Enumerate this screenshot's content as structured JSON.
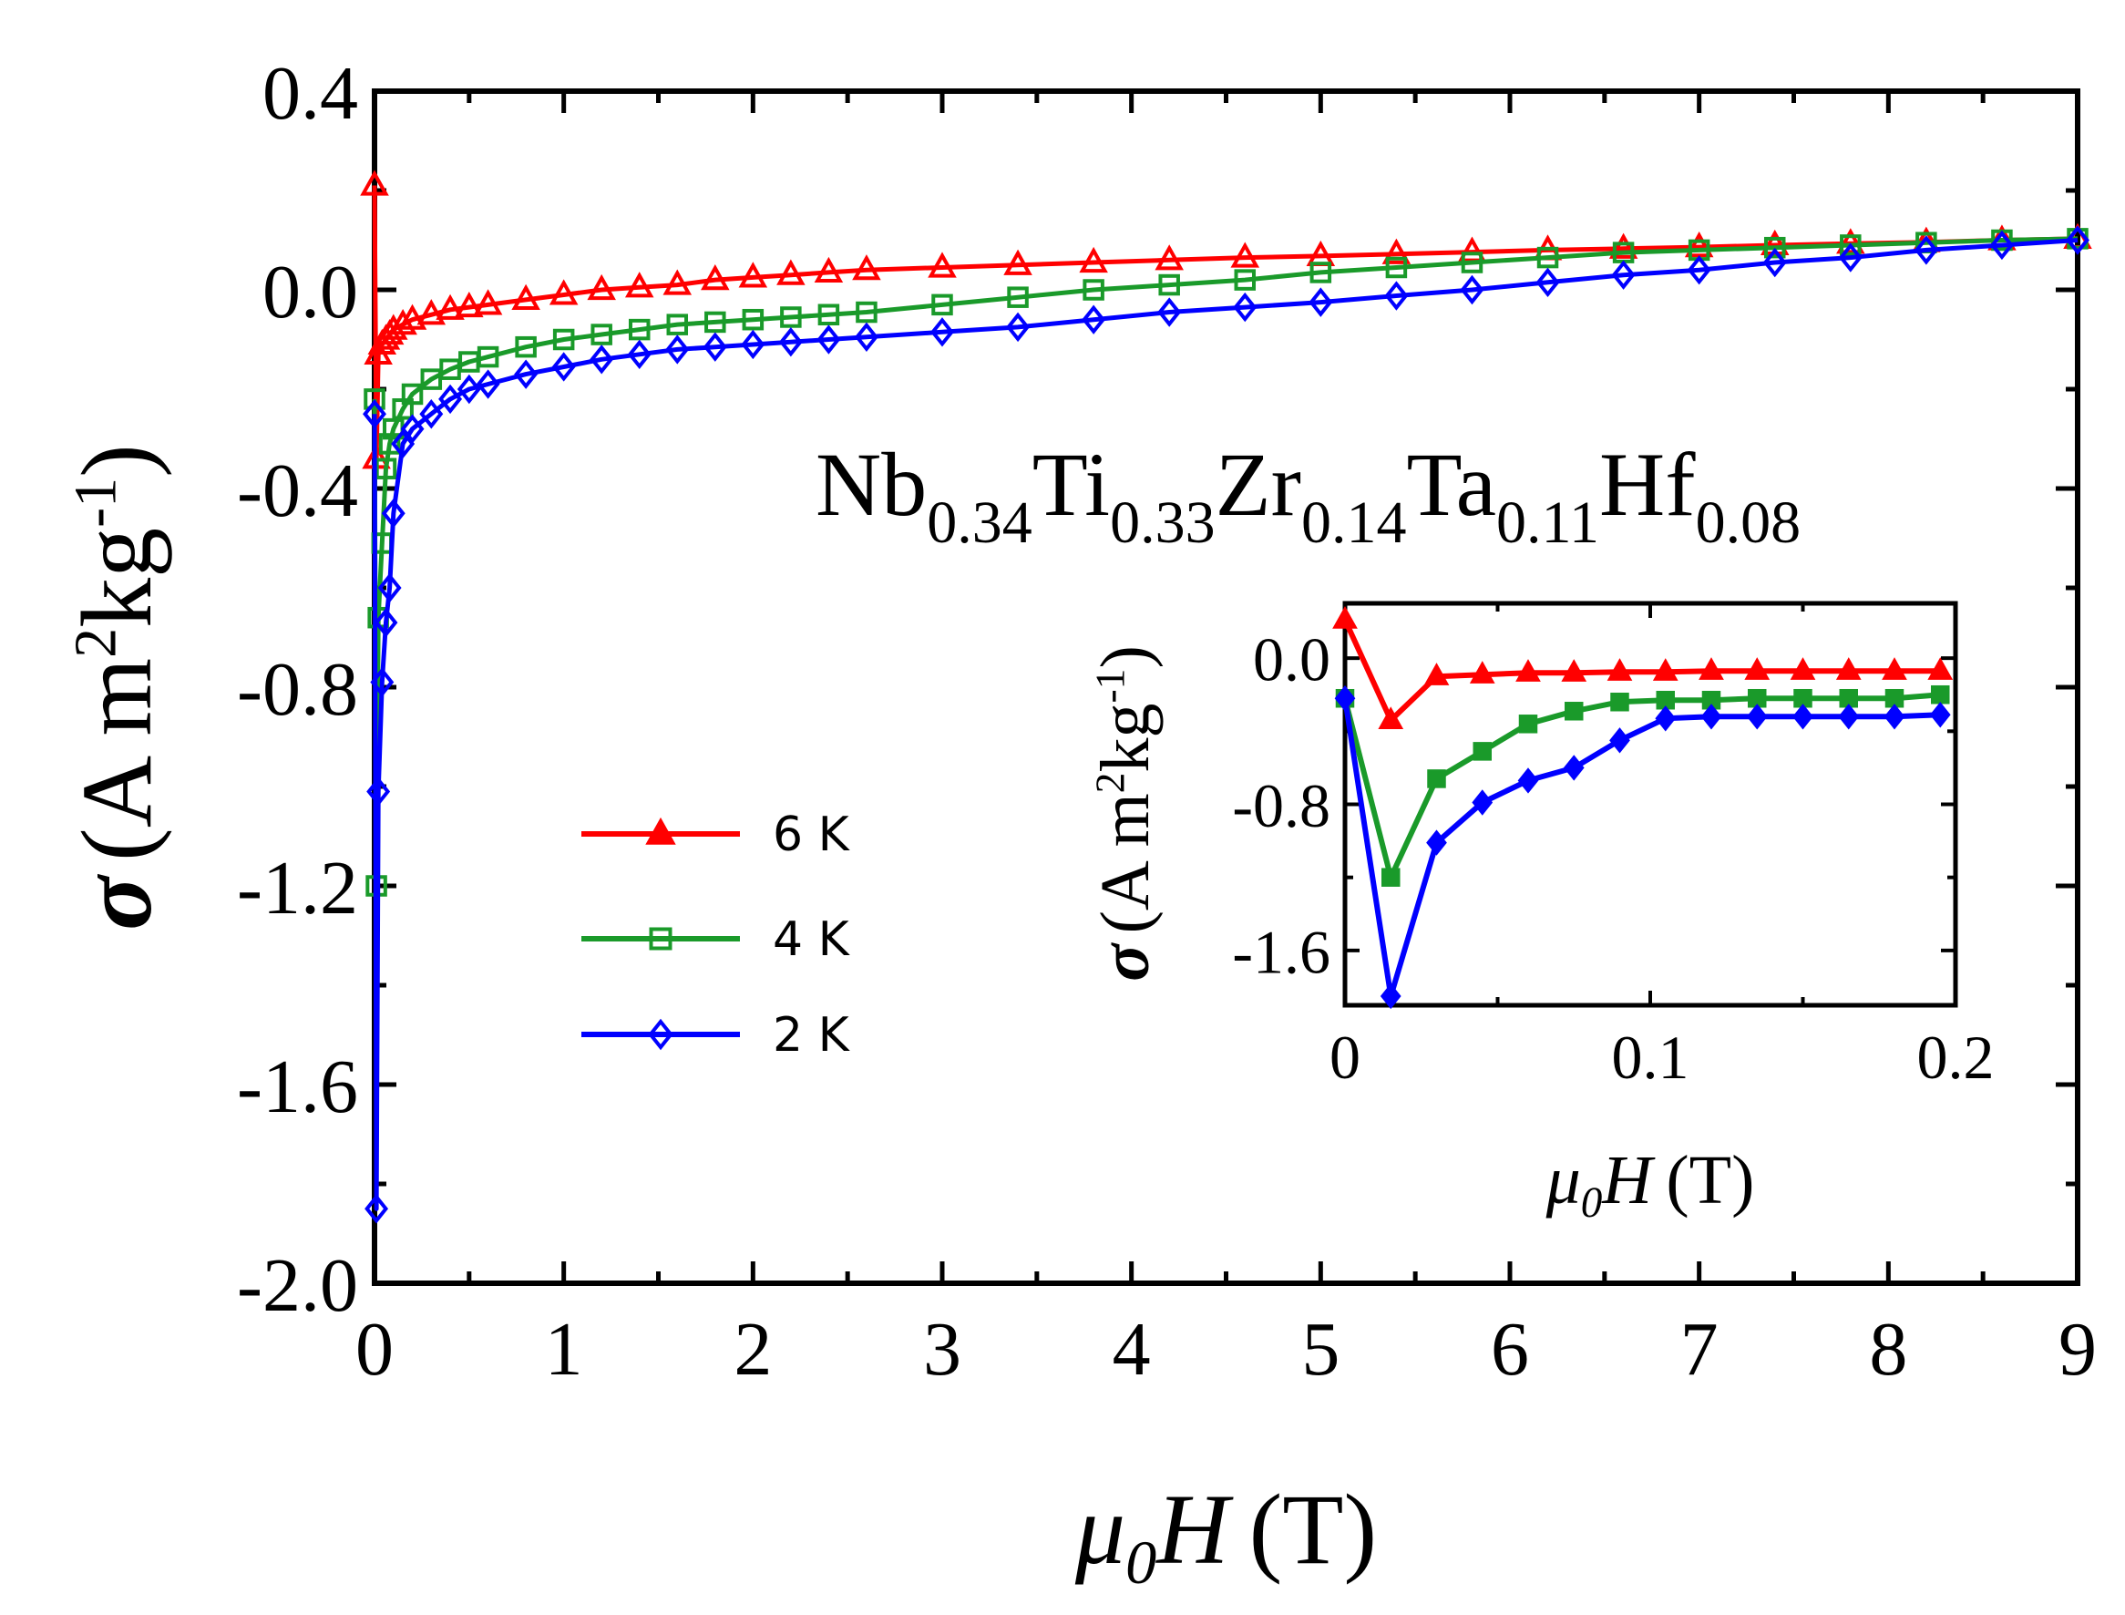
{
  "chart_data": [
    {
      "type": "line",
      "name": "main",
      "ylabel_symbol": "σ",
      "ylabel_units": "(A m",
      "ylabel_sq": "2",
      "ylabel_kg": "kg",
      "ylabel_exp": "-1",
      "ylabel_close": ")",
      "xlabel_mu": "μ",
      "xlabel_sub": "0",
      "xlabel_H": "H",
      "xlabel_unit": "(T)",
      "xlim": [
        0,
        9
      ],
      "ylim": [
        -2.0,
        0.4
      ],
      "xticks": [
        0,
        1,
        2,
        3,
        4,
        5,
        6,
        7,
        8,
        9
      ],
      "yticks": [
        0.4,
        0.0,
        -0.4,
        -0.8,
        -1.2,
        -1.6,
        -2.0
      ],
      "xtick_labels": [
        "0",
        "1",
        "2",
        "3",
        "4",
        "5",
        "6",
        "7",
        "8",
        "9"
      ],
      "ytick_labels": [
        "0.4",
        "0.0",
        "-0.4",
        "-0.8",
        "-1.2",
        "-1.6",
        "-2.0"
      ],
      "compound_parts": [
        {
          "el": "Nb",
          "sub": "0.34"
        },
        {
          "el": "Ti",
          "sub": "0.33"
        },
        {
          "el": "Zr",
          "sub": "0.14"
        },
        {
          "el": "Ta",
          "sub": "0.11"
        },
        {
          "el": "Hf",
          "sub": "0.08"
        }
      ],
      "legend_position": "center-left",
      "series": [
        {
          "name": "6 K",
          "color": "#ff0000",
          "marker": "triangle",
          "x": [
            0.0,
            0.01,
            0.02,
            0.04,
            0.06,
            0.08,
            0.1,
            0.15,
            0.2,
            0.3,
            0.4,
            0.5,
            0.6,
            0.8,
            1.0,
            1.2,
            1.4,
            1.6,
            1.8,
            2.0,
            2.2,
            2.4,
            2.6,
            3.0,
            3.4,
            3.8,
            4.2,
            4.6,
            5.0,
            5.4,
            5.8,
            6.2,
            6.6,
            7.0,
            7.4,
            7.8,
            8.2,
            8.6,
            9.0
          ],
          "y": [
            0.21,
            -0.34,
            -0.13,
            -0.11,
            -0.1,
            -0.09,
            -0.08,
            -0.07,
            -0.06,
            -0.05,
            -0.04,
            -0.035,
            -0.03,
            -0.02,
            -0.01,
            0.0,
            0.005,
            0.01,
            0.02,
            0.025,
            0.03,
            0.035,
            0.04,
            0.045,
            0.05,
            0.055,
            0.06,
            0.065,
            0.068,
            0.072,
            0.076,
            0.08,
            0.083,
            0.086,
            0.09,
            0.093,
            0.096,
            0.1,
            0.103
          ]
        },
        {
          "name": "4 K",
          "color": "#1a9a2a",
          "marker": "square",
          "x": [
            0.0,
            0.01,
            0.02,
            0.04,
            0.06,
            0.08,
            0.1,
            0.15,
            0.2,
            0.3,
            0.4,
            0.5,
            0.6,
            0.8,
            1.0,
            1.2,
            1.4,
            1.6,
            1.8,
            2.0,
            2.2,
            2.4,
            2.6,
            3.0,
            3.4,
            3.8,
            4.2,
            4.6,
            5.0,
            5.4,
            5.8,
            6.2,
            6.6,
            7.0,
            7.4,
            7.8,
            8.2,
            8.6,
            9.0
          ],
          "y": [
            -0.22,
            -1.2,
            -0.66,
            -0.51,
            -0.36,
            -0.31,
            -0.28,
            -0.24,
            -0.21,
            -0.18,
            -0.16,
            -0.145,
            -0.135,
            -0.115,
            -0.1,
            -0.09,
            -0.08,
            -0.07,
            -0.065,
            -0.06,
            -0.055,
            -0.05,
            -0.045,
            -0.03,
            -0.015,
            0.0,
            0.01,
            0.02,
            0.035,
            0.045,
            0.055,
            0.065,
            0.075,
            0.08,
            0.085,
            0.09,
            0.095,
            0.1,
            0.103
          ]
        },
        {
          "name": "2 K",
          "color": "#0000ff",
          "marker": "diamond",
          "x": [
            0.0,
            0.01,
            0.02,
            0.04,
            0.06,
            0.08,
            0.1,
            0.15,
            0.2,
            0.3,
            0.4,
            0.5,
            0.6,
            0.8,
            1.0,
            1.2,
            1.4,
            1.6,
            1.8,
            2.0,
            2.2,
            2.4,
            2.6,
            3.0,
            3.4,
            3.8,
            4.2,
            4.6,
            5.0,
            5.4,
            5.8,
            6.2,
            6.6,
            7.0,
            7.4,
            7.8,
            8.2,
            8.6,
            9.0
          ],
          "y": [
            -0.25,
            -1.85,
            -1.01,
            -0.79,
            -0.67,
            -0.6,
            -0.45,
            -0.31,
            -0.28,
            -0.25,
            -0.22,
            -0.2,
            -0.19,
            -0.17,
            -0.155,
            -0.14,
            -0.13,
            -0.12,
            -0.115,
            -0.11,
            -0.105,
            -0.1,
            -0.095,
            -0.085,
            -0.075,
            -0.06,
            -0.045,
            -0.035,
            -0.025,
            -0.012,
            0.0,
            0.015,
            0.03,
            0.04,
            0.055,
            0.065,
            0.08,
            0.09,
            0.1
          ]
        }
      ]
    },
    {
      "type": "line",
      "name": "inset",
      "ylabel_symbol": "σ",
      "ylabel_units": "(A m",
      "ylabel_sq": "2",
      "ylabel_kg": "kg",
      "ylabel_exp": "-1",
      "ylabel_close": ")",
      "xlabel_mu": "μ",
      "xlabel_sub": "0",
      "xlabel_H": "H",
      "xlabel_unit": "(T)",
      "xlim": [
        0,
        0.2
      ],
      "ylim": [
        -1.9,
        0.3
      ],
      "xticks": [
        0,
        0.1,
        0.2
      ],
      "yticks": [
        0.0,
        -0.8,
        -1.6
      ],
      "xtick_labels": [
        "0",
        "0.1",
        "0.2"
      ],
      "ytick_labels": [
        "0.0",
        "-0.8",
        "-1.6"
      ],
      "series": [
        {
          "name": "6 K",
          "color": "#ff0000",
          "marker": "triangle",
          "x": [
            0.0,
            0.015,
            0.03,
            0.045,
            0.06,
            0.075,
            0.09,
            0.105,
            0.12,
            0.135,
            0.15,
            0.165,
            0.18,
            0.195
          ],
          "y": [
            0.21,
            -0.34,
            -0.1,
            -0.09,
            -0.08,
            -0.08,
            -0.075,
            -0.075,
            -0.07,
            -0.07,
            -0.07,
            -0.07,
            -0.07,
            -0.07
          ]
        },
        {
          "name": "4 K",
          "color": "#1a9a2a",
          "marker": "square",
          "x": [
            0.0,
            0.015,
            0.03,
            0.045,
            0.06,
            0.075,
            0.09,
            0.105,
            0.12,
            0.135,
            0.15,
            0.165,
            0.18,
            0.195
          ],
          "y": [
            -0.22,
            -1.2,
            -0.66,
            -0.51,
            -0.36,
            -0.29,
            -0.24,
            -0.23,
            -0.23,
            -0.22,
            -0.22,
            -0.22,
            -0.22,
            -0.2
          ]
        },
        {
          "name": "2 K",
          "color": "#0000ff",
          "marker": "diamond",
          "x": [
            0.0,
            0.015,
            0.03,
            0.045,
            0.06,
            0.075,
            0.09,
            0.105,
            0.12,
            0.135,
            0.15,
            0.165,
            0.18,
            0.195
          ],
          "y": [
            -0.22,
            -1.85,
            -1.01,
            -0.79,
            -0.67,
            -0.6,
            -0.45,
            -0.33,
            -0.32,
            -0.32,
            -0.32,
            -0.32,
            -0.32,
            -0.31
          ]
        }
      ]
    }
  ]
}
